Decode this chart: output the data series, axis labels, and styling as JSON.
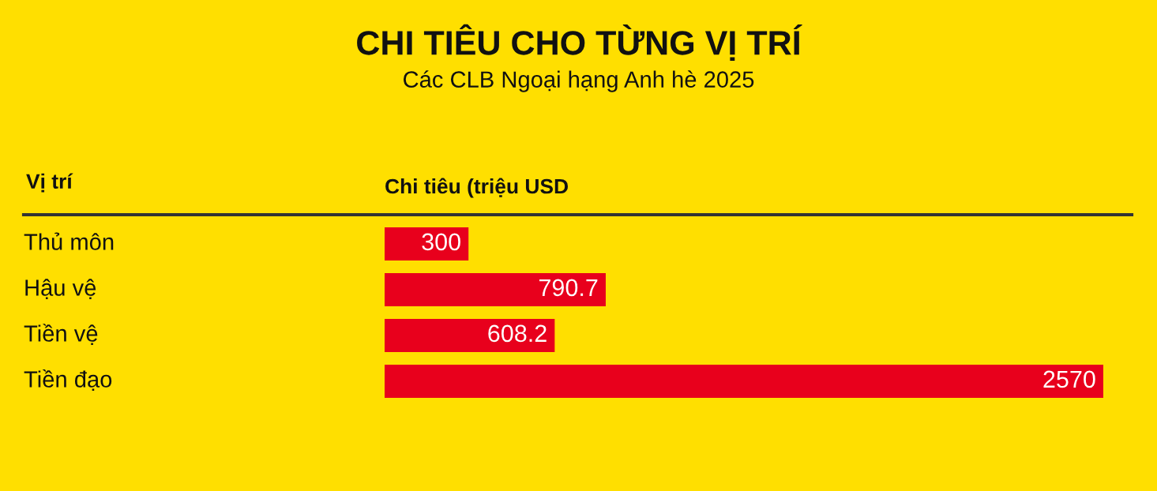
{
  "chart_data": {
    "type": "bar",
    "orientation": "horizontal",
    "title": "CHI TIÊU CHO TỪNG VỊ TRÍ",
    "subtitle": "Các CLB Ngoại hạng Anh hè 2025",
    "ylabel": "Vị trí",
    "xlabel": "Chi tiêu (triệu USD",
    "categories": [
      "Thủ môn",
      "Hậu vệ",
      "Tiền vệ",
      "Tiền đạo"
    ],
    "values": [
      300,
      790.7,
      608.2,
      2570
    ],
    "color": "#e8001c",
    "data_labels": true
  }
}
